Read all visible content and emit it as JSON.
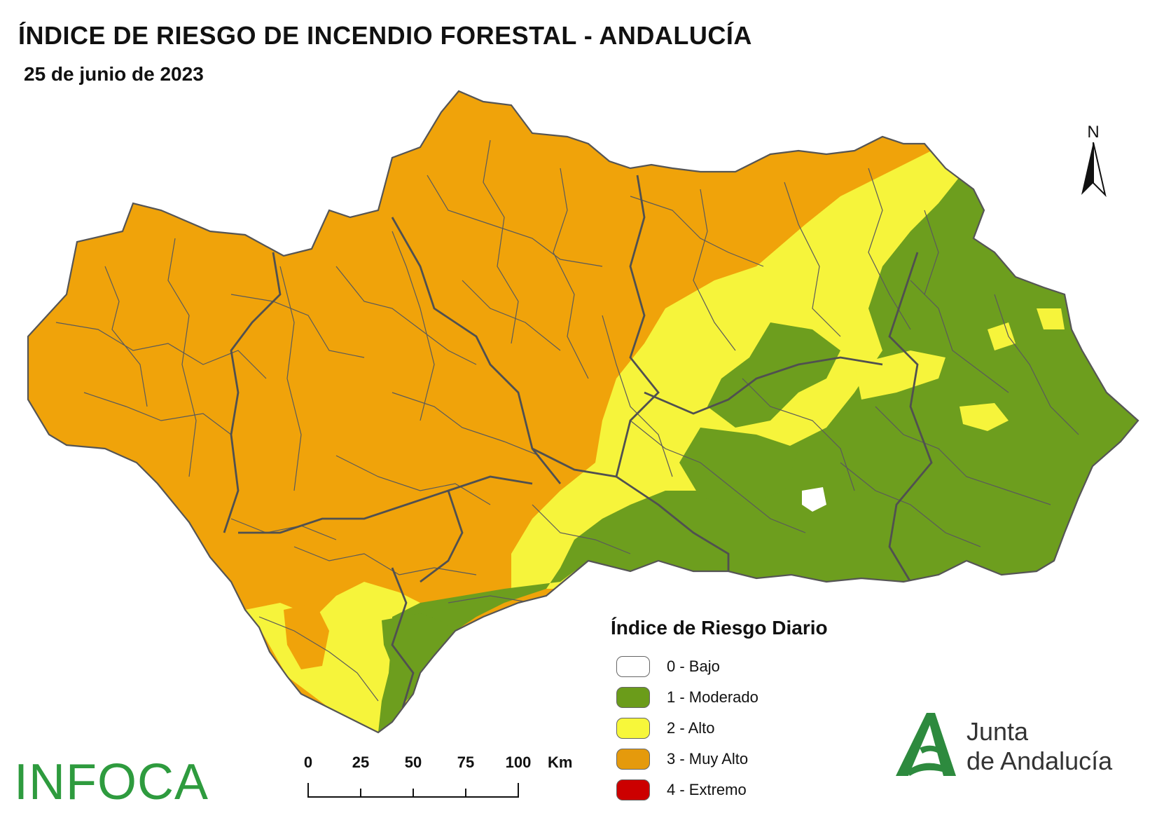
{
  "header": {
    "title": "ÍNDICE DE RIESGO DE INCENDIO FORESTAL - ANDALUCÍA",
    "date": "25 de junio de 2023"
  },
  "north_arrow": {
    "label": "N"
  },
  "legend": {
    "title": "Índice de Riesgo Diario",
    "items": [
      {
        "label": "0 - Bajo",
        "color": "#ffffff"
      },
      {
        "label": "1 - Moderado",
        "color": "#6b9c1a"
      },
      {
        "label": "2 - Alto",
        "color": "#f7f73a"
      },
      {
        "label": "3 - Muy Alto",
        "color": "#e59a0c"
      },
      {
        "label": "4 - Extremo",
        "color": "#cc0000"
      }
    ]
  },
  "scale_bar": {
    "ticks": [
      "0",
      "25",
      "50",
      "75",
      "100"
    ],
    "unit": "Km"
  },
  "logos": {
    "infoca": "INFOCA",
    "junta_line1": "Junta",
    "junta_line2": "de Andalucía"
  },
  "map_colors": {
    "muy_alto": "#f0a30a",
    "alto": "#f6f43b",
    "moderado": "#6d9e1e",
    "bajo": "#ffffff",
    "boundary": "#5a5a5a"
  }
}
